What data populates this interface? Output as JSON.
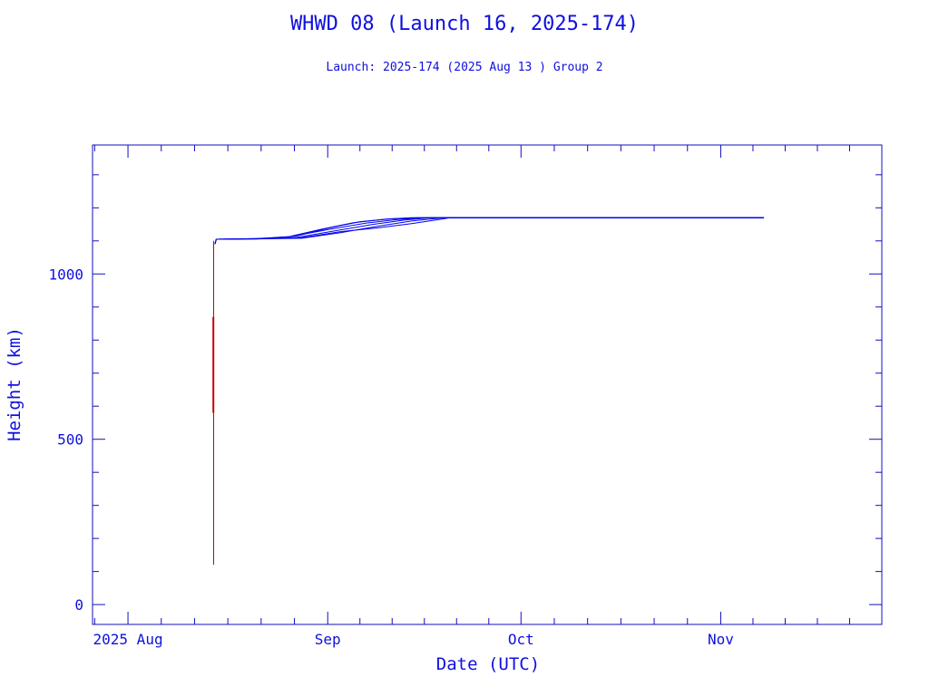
{
  "chart_data": {
    "type": "line",
    "title": "WHWD 08 (Launch 16, 2025-174)",
    "subtitle": "Launch: 2025-174  (2025 Aug 13 )  Group 2",
    "xlabel": "Date (UTC)",
    "ylabel": "Height (km)",
    "x_units": "days since 2025 Aug 1",
    "xlim": [
      -5.5,
      117
    ],
    "ylim": [
      -60,
      1390
    ],
    "x_ticks": [
      {
        "value": 0,
        "label": "2025 Aug"
      },
      {
        "value": 31,
        "label": "Sep"
      },
      {
        "value": 61,
        "label": "Oct"
      },
      {
        "value": 92,
        "label": "Nov"
      }
    ],
    "y_ticks": [
      {
        "value": 0,
        "label": "0"
      },
      {
        "value": 500,
        "label": "500"
      },
      {
        "value": 1000,
        "label": "1000"
      }
    ],
    "grid": false,
    "colors": {
      "axis": "#1010c0",
      "blue": "#0000ee",
      "red": "#cc0000"
    },
    "series": [
      {
        "name": "insertion",
        "color": "#cc0000",
        "points": [
          [
            13.3,
            120
          ],
          [
            13.3,
            1100
          ]
        ]
      },
      {
        "name": "insertion-thick",
        "color": "#cc0000",
        "width": 2,
        "points": [
          [
            13.25,
            580
          ],
          [
            13.25,
            870
          ]
        ]
      },
      {
        "name": "object-1",
        "color": "#0000ee",
        "points": [
          [
            13.5,
            1090
          ],
          [
            13.7,
            1105
          ],
          [
            20,
            1106
          ],
          [
            27,
            1108
          ],
          [
            33,
            1125
          ],
          [
            39,
            1145
          ],
          [
            44,
            1160
          ],
          [
            49,
            1170
          ],
          [
            98.7,
            1170
          ]
        ]
      },
      {
        "name": "object-2",
        "color": "#0000ee",
        "points": [
          [
            13.5,
            1090
          ],
          [
            13.7,
            1105
          ],
          [
            20,
            1106
          ],
          [
            26,
            1110
          ],
          [
            32,
            1130
          ],
          [
            38,
            1150
          ],
          [
            43,
            1163
          ],
          [
            47,
            1170
          ],
          [
            98.7,
            1170
          ]
        ]
      },
      {
        "name": "object-3",
        "color": "#0000ee",
        "points": [
          [
            13.5,
            1090
          ],
          [
            13.7,
            1105
          ],
          [
            20,
            1106
          ],
          [
            25,
            1112
          ],
          [
            31,
            1134
          ],
          [
            37,
            1154
          ],
          [
            42,
            1165
          ],
          [
            46,
            1170
          ],
          [
            98.7,
            1170
          ]
        ]
      },
      {
        "name": "object-4",
        "color": "#0000ee",
        "points": [
          [
            13.5,
            1090
          ],
          [
            13.7,
            1105
          ],
          [
            20,
            1107
          ],
          [
            25,
            1113
          ],
          [
            30,
            1135
          ],
          [
            35,
            1155
          ],
          [
            40,
            1166
          ],
          [
            45,
            1170
          ],
          [
            98.7,
            1170
          ]
        ]
      },
      {
        "name": "object-5",
        "color": "#0000ee",
        "points": [
          [
            13.5,
            1090
          ],
          [
            13.7,
            1105
          ],
          [
            21,
            1107
          ],
          [
            26,
            1114
          ],
          [
            31,
            1138
          ],
          [
            36,
            1158
          ],
          [
            41,
            1167
          ],
          [
            44,
            1170
          ],
          [
            98.7,
            1170
          ]
        ]
      },
      {
        "name": "object-6",
        "color": "#0000ee",
        "points": [
          [
            13.5,
            1090
          ],
          [
            13.7,
            1105
          ],
          [
            21,
            1107
          ],
          [
            27,
            1110
          ],
          [
            33,
            1128
          ],
          [
            39,
            1140
          ],
          [
            44,
            1152
          ],
          [
            48,
            1164
          ],
          [
            50,
            1170
          ],
          [
            98.7,
            1170
          ]
        ]
      }
    ]
  }
}
